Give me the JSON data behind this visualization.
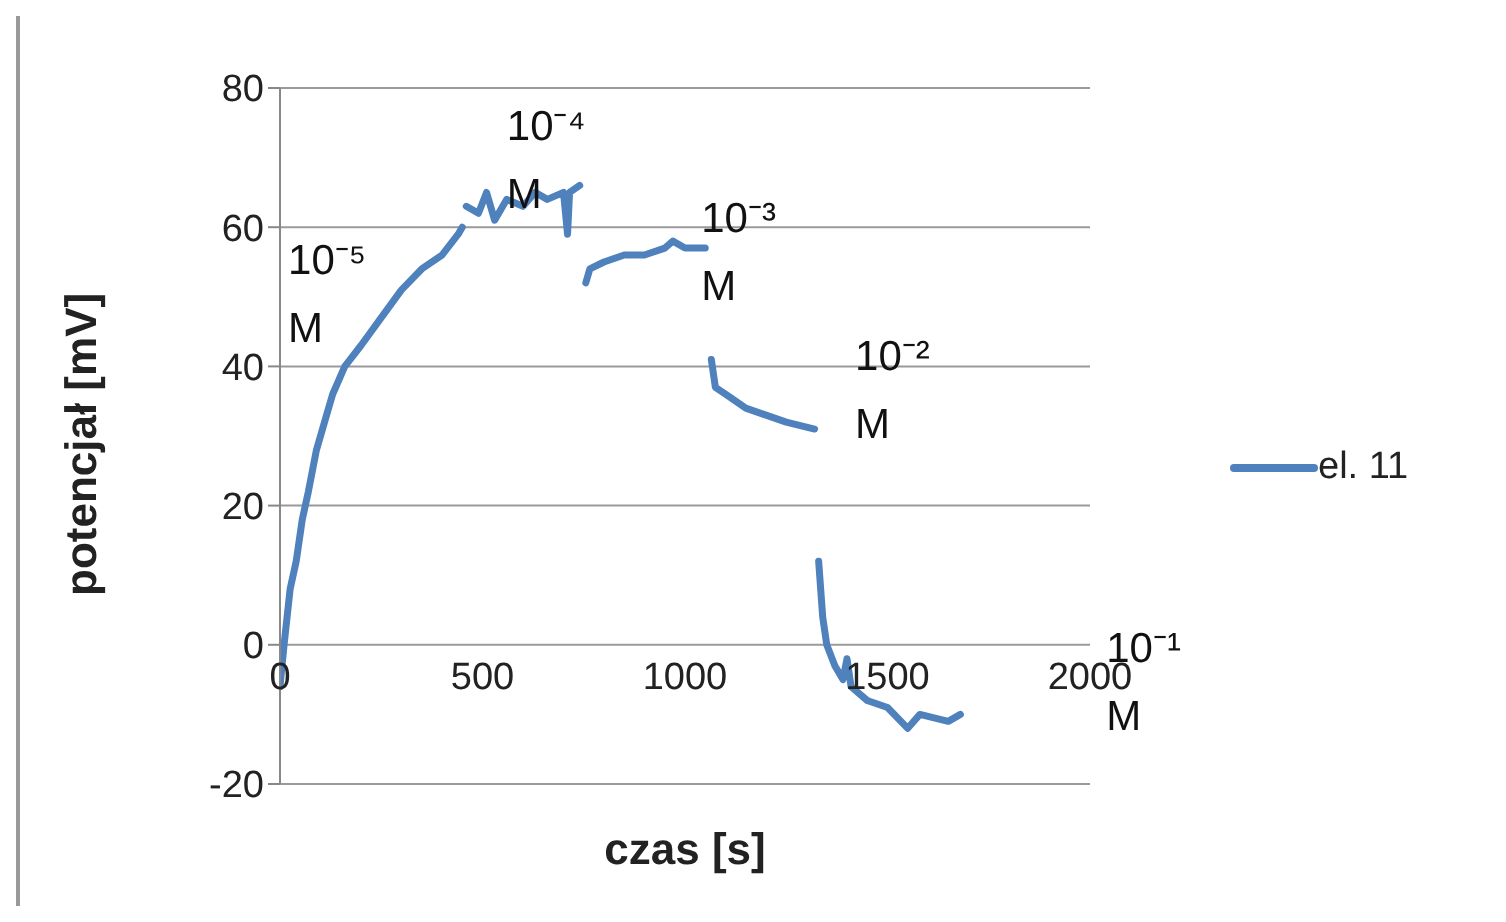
{
  "chart_data": {
    "type": "line",
    "xlabel": "czas [s]",
    "ylabel": "potencjał [mV]",
    "x": [
      0,
      10,
      25,
      40,
      55,
      70,
      90,
      110,
      130,
      160,
      200,
      250,
      300,
      350,
      400,
      440,
      450,
      455,
      460,
      490,
      510,
      530,
      560,
      600,
      630,
      660,
      700,
      710,
      715,
      740,
      748,
      755,
      765,
      800,
      850,
      900,
      950,
      970,
      1000,
      1050,
      1058,
      1065,
      1075,
      1100,
      1150,
      1200,
      1250,
      1320,
      1325,
      1330,
      1340,
      1350,
      1370,
      1390,
      1400,
      1410,
      1450,
      1500,
      1550,
      1580,
      1650,
      1680
    ],
    "series": [
      {
        "name": "el. 11",
        "color": "#4f81bd",
        "values": [
          -6,
          0,
          8,
          12,
          18,
          22,
          28,
          32,
          36,
          40,
          43,
          47,
          51,
          54,
          56,
          59,
          60,
          null,
          63,
          62,
          65,
          61,
          64,
          63,
          65,
          64,
          65,
          59,
          65,
          66,
          null,
          52,
          54,
          55,
          56,
          56,
          57,
          58,
          57,
          57,
          null,
          41,
          37,
          36,
          34,
          33,
          32,
          31,
          null,
          12,
          4,
          0,
          -3,
          -5,
          -2,
          -6,
          -8,
          -9,
          -12,
          -10,
          -11,
          -10
        ]
      }
    ],
    "xlim": [
      0,
      2000
    ],
    "xticks": [
      0,
      500,
      1000,
      1500,
      2000
    ],
    "ylim": [
      -20,
      80
    ],
    "yticks": [
      -20,
      0,
      20,
      40,
      60,
      80
    ],
    "grid": "y",
    "legend": "right",
    "marker": "none",
    "line_style": "solid",
    "annotations": [
      "10⁻⁵ M",
      "10⁻⁴ M",
      "10⁻³ M",
      "10⁻² M",
      "10⁻¹ M"
    ]
  }
}
